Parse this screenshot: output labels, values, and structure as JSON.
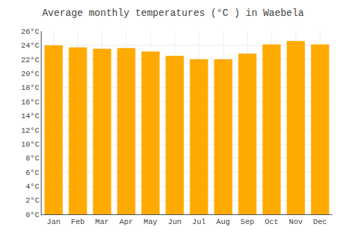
{
  "chart_data": {
    "type": "bar",
    "title": "Average monthly temperatures (°C ) in Waebela",
    "categories": [
      "Jan",
      "Feb",
      "Mar",
      "Apr",
      "May",
      "Jun",
      "Jul",
      "Aug",
      "Sep",
      "Oct",
      "Nov",
      "Dec"
    ],
    "values": [
      24.0,
      23.7,
      23.5,
      23.6,
      23.1,
      22.5,
      22.0,
      22.0,
      22.8,
      24.1,
      24.6,
      24.1
    ],
    "color": "#FFAA00",
    "ylim": [
      0,
      26
    ],
    "yticks": [
      {
        "value": 0,
        "label": "0°C"
      },
      {
        "value": 2,
        "label": "2°C"
      },
      {
        "value": 4,
        "label": "4°C"
      },
      {
        "value": 6,
        "label": "6°C"
      },
      {
        "value": 8,
        "label": "8°C"
      },
      {
        "value": 10,
        "label": "10°C"
      },
      {
        "value": 12,
        "label": "12°C"
      },
      {
        "value": 14,
        "label": "14°C"
      },
      {
        "value": 16,
        "label": "16°C"
      },
      {
        "value": 18,
        "label": "18°C"
      },
      {
        "value": 20,
        "label": "20°C"
      },
      {
        "value": 22,
        "label": "22°C"
      },
      {
        "value": 24,
        "label": "24°C"
      },
      {
        "value": 26,
        "label": "26°C"
      }
    ],
    "grid": true
  }
}
